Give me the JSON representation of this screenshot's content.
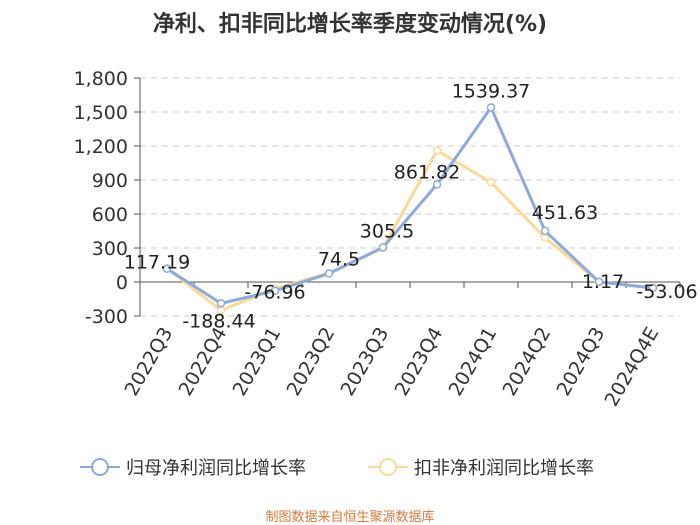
{
  "title": "净利、扣非同比增长率季度变动情况(%)",
  "source": "制图数据来自恒生聚源数据库",
  "chart_data": {
    "type": "line",
    "title": "净利、扣非同比增长率季度变动情况(%)",
    "categories": [
      "2022Q3",
      "2022Q4",
      "2023Q1",
      "2023Q2",
      "2023Q3",
      "2023Q4",
      "2024Q1",
      "2024Q2",
      "2024Q3",
      "2024Q4E"
    ],
    "y_ticks": [
      "1,800",
      "1,500",
      "1,200",
      "900",
      "600",
      "300",
      "0",
      "-300"
    ],
    "ylim": [
      -300,
      1800
    ],
    "grid": true,
    "legend_position": "bottom",
    "series": [
      {
        "name": "归母净利润同比增长率",
        "color": "#8eaadb",
        "values": [
          117.19,
          -188.44,
          -76.96,
          74.5,
          305.5,
          861.82,
          1539.37,
          451.63,
          1.17,
          -53.06
        ],
        "labels": [
          "117.19",
          "-188.44",
          "-76.96",
          "74.5",
          "305.5",
          "861.82",
          "1539.37",
          "451.63",
          "1.17",
          "-53.06"
        ]
      },
      {
        "name": "扣非净利润同比增长率",
        "color": "#fbd99a",
        "values": [
          120,
          -250,
          -60,
          80,
          300,
          1160,
          880,
          390,
          0,
          -50
        ]
      }
    ]
  }
}
